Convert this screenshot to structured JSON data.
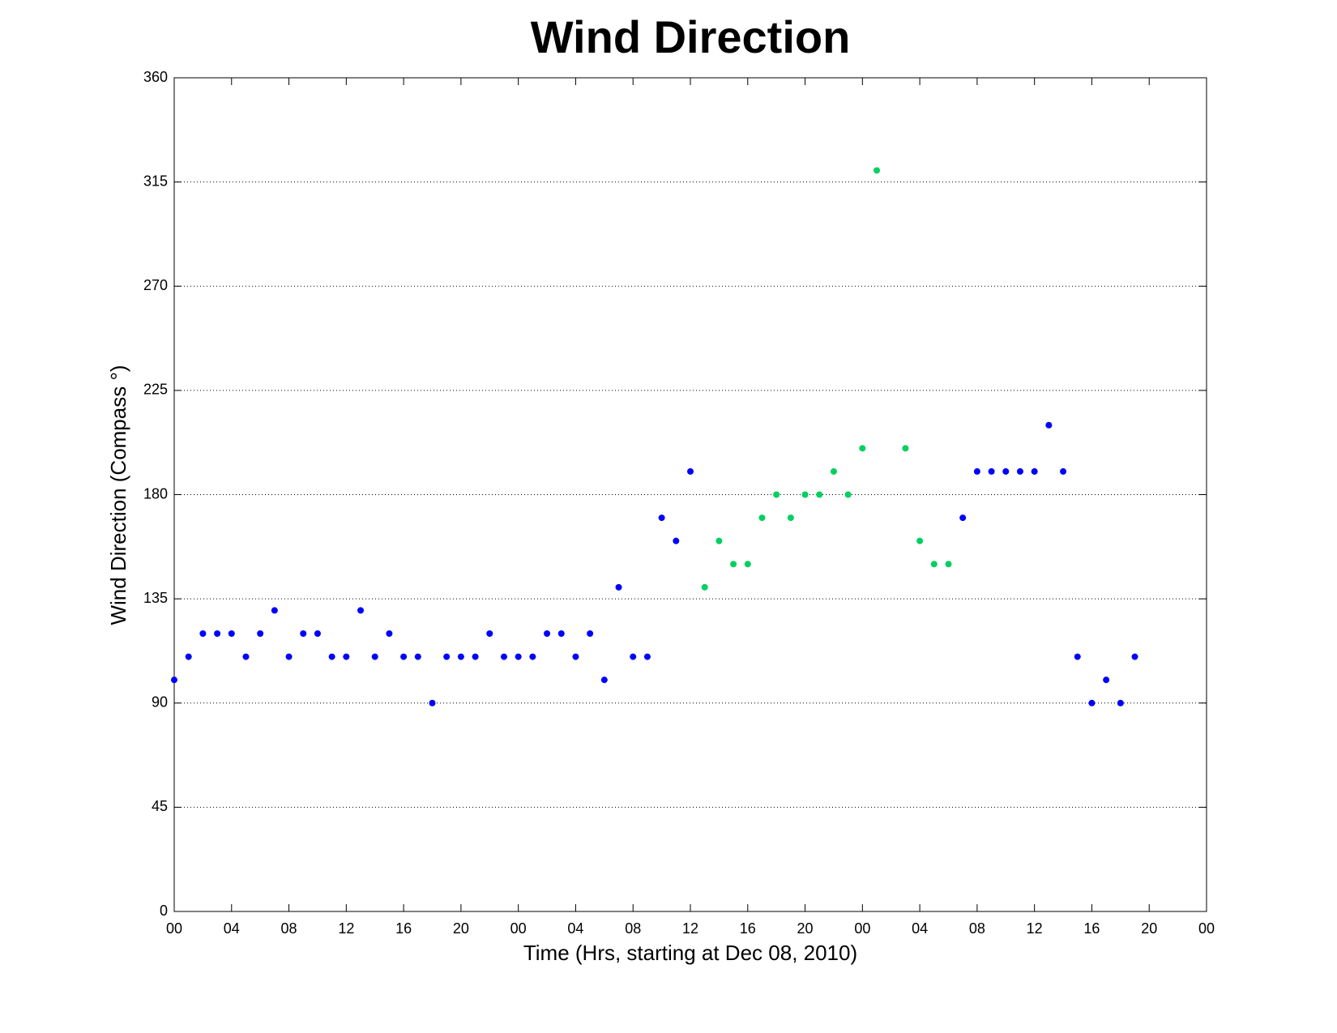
{
  "chart_data": {
    "type": "scatter",
    "title": "Wind Direction",
    "xlabel": "Time (Hrs, starting at Dec 08, 2010)",
    "ylabel": "Wind Direction (Compass °)",
    "xlim": [
      0,
      72
    ],
    "ylim": [
      0,
      360
    ],
    "xticks": [
      {
        "value": 0,
        "label": "00"
      },
      {
        "value": 4,
        "label": "04"
      },
      {
        "value": 8,
        "label": "08"
      },
      {
        "value": 12,
        "label": "12"
      },
      {
        "value": 16,
        "label": "16"
      },
      {
        "value": 20,
        "label": "20"
      },
      {
        "value": 24,
        "label": "00"
      },
      {
        "value": 28,
        "label": "04"
      },
      {
        "value": 32,
        "label": "08"
      },
      {
        "value": 36,
        "label": "12"
      },
      {
        "value": 40,
        "label": "16"
      },
      {
        "value": 44,
        "label": "20"
      },
      {
        "value": 48,
        "label": "00"
      },
      {
        "value": 52,
        "label": "04"
      },
      {
        "value": 56,
        "label": "08"
      },
      {
        "value": 60,
        "label": "12"
      },
      {
        "value": 64,
        "label": "16"
      },
      {
        "value": 68,
        "label": "20"
      },
      {
        "value": 72,
        "label": "00"
      }
    ],
    "yticks": [
      0,
      45,
      90,
      135,
      180,
      225,
      270,
      315,
      360
    ],
    "grid": true,
    "series": [
      {
        "color": "#0000ff",
        "x": [
          0,
          1,
          2,
          3,
          4,
          5,
          6,
          7,
          8,
          9,
          10,
          11,
          12,
          13,
          14,
          15,
          16,
          17,
          18,
          19,
          20,
          21,
          22,
          23,
          24,
          25,
          26,
          27,
          28,
          29,
          30,
          31,
          32,
          33,
          34,
          35,
          36,
          55,
          56,
          57,
          58,
          59,
          60,
          61,
          62,
          63,
          64,
          65,
          66,
          67
        ],
        "values": [
          100,
          110,
          120,
          120,
          120,
          110,
          120,
          130,
          110,
          120,
          120,
          110,
          110,
          130,
          110,
          120,
          110,
          110,
          90,
          110,
          110,
          110,
          120,
          110,
          110,
          110,
          120,
          120,
          110,
          120,
          100,
          140,
          110,
          110,
          170,
          160,
          190,
          170,
          190,
          190,
          190,
          190,
          190,
          210,
          190,
          110,
          90,
          100,
          90,
          110
        ]
      },
      {
        "color": "#00d060",
        "x": [
          37,
          38,
          39,
          40,
          41,
          42,
          43,
          44,
          45,
          46,
          47,
          48,
          49,
          51,
          52,
          53,
          54
        ],
        "values": [
          140,
          160,
          150,
          150,
          170,
          180,
          170,
          180,
          180,
          190,
          180,
          200,
          320,
          200,
          160,
          150,
          150
        ]
      }
    ]
  }
}
